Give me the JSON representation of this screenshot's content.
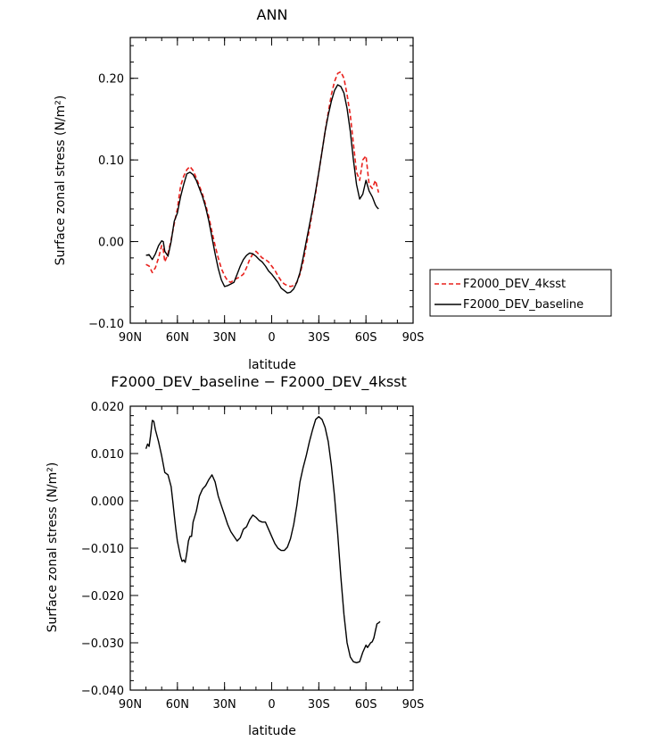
{
  "chart_data": [
    {
      "type": "line",
      "title": "ANN",
      "xlabel": "latitude",
      "ylabel": "Surface zonal stress (N/m²)",
      "xlim": [
        90,
        -90
      ],
      "ylim": [
        -0.1,
        0.25
      ],
      "x_ticks": [
        90,
        60,
        30,
        0,
        -30,
        -60,
        -90
      ],
      "x_tick_labels": [
        "90N",
        "60N",
        "30N",
        "0",
        "30S",
        "60S",
        "90S"
      ],
      "y_ticks": [
        -0.1,
        0.0,
        0.1,
        0.2
      ],
      "y_tick_labels": [
        "−0.10",
        "0.00",
        "0.10",
        "0.20"
      ],
      "legend": {
        "placement": "right",
        "entries": [
          "F2000_DEV_4ksst",
          "F2000_DEV_baseline"
        ]
      },
      "series": [
        {
          "name": "F2000_DEV_4ksst",
          "color": "#e8201c",
          "style": "dashed",
          "x": [
            80,
            78,
            76,
            74,
            72,
            70,
            69,
            68,
            66,
            64,
            62,
            60,
            58,
            56,
            54,
            52,
            50,
            48,
            46,
            44,
            42,
            40,
            38,
            36,
            34,
            32,
            30,
            28,
            26,
            24,
            22,
            20,
            18,
            16,
            14,
            12,
            10,
            8,
            6,
            4,
            2,
            0,
            -2,
            -4,
            -6,
            -8,
            -10,
            -12,
            -14,
            -16,
            -18,
            -20,
            -22,
            -24,
            -26,
            -28,
            -30,
            -32,
            -34,
            -36,
            -38,
            -40,
            -42,
            -44,
            -46,
            -48,
            -50,
            -52,
            -54,
            -56,
            -58,
            -60,
            -62,
            -64,
            -65,
            -66,
            -67,
            -68
          ],
          "values": [
            -0.028,
            -0.03,
            -0.038,
            -0.032,
            -0.02,
            -0.005,
            -0.01,
            -0.025,
            -0.015,
            0.002,
            0.022,
            0.04,
            0.068,
            0.08,
            0.088,
            0.092,
            0.087,
            0.078,
            0.068,
            0.058,
            0.045,
            0.03,
            0.012,
            -0.005,
            -0.02,
            -0.033,
            -0.042,
            -0.048,
            -0.05,
            -0.047,
            -0.045,
            -0.043,
            -0.04,
            -0.032,
            -0.022,
            -0.015,
            -0.012,
            -0.016,
            -0.02,
            -0.022,
            -0.025,
            -0.03,
            -0.035,
            -0.042,
            -0.048,
            -0.052,
            -0.054,
            -0.055,
            -0.054,
            -0.05,
            -0.04,
            -0.025,
            -0.005,
            0.015,
            0.038,
            0.06,
            0.085,
            0.11,
            0.135,
            0.158,
            0.18,
            0.196,
            0.206,
            0.208,
            0.2,
            0.18,
            0.155,
            0.12,
            0.085,
            0.075,
            0.1,
            0.105,
            0.07,
            0.065,
            0.07,
            0.075,
            0.068,
            0.06
          ]
        },
        {
          "name": "F2000_DEV_baseline",
          "color": "#000000",
          "style": "solid",
          "x": [
            80,
            78,
            76,
            74,
            72,
            70,
            69,
            68,
            66,
            64,
            62,
            60,
            58,
            56,
            54,
            52,
            50,
            48,
            46,
            44,
            42,
            40,
            38,
            36,
            34,
            32,
            30,
            28,
            26,
            24,
            22,
            20,
            18,
            16,
            14,
            12,
            10,
            8,
            6,
            4,
            2,
            0,
            -2,
            -4,
            -6,
            -8,
            -10,
            -12,
            -14,
            -16,
            -18,
            -20,
            -22,
            -24,
            -26,
            -28,
            -30,
            -32,
            -34,
            -36,
            -38,
            -40,
            -42,
            -44,
            -46,
            -48,
            -50,
            -52,
            -54,
            -56,
            -58,
            -60,
            -62,
            -64,
            -65,
            -66,
            -67,
            -68
          ],
          "values": [
            -0.017,
            -0.016,
            -0.022,
            -0.015,
            -0.005,
            0.001,
            0.0,
            -0.012,
            -0.018,
            0.0,
            0.025,
            0.035,
            0.055,
            0.07,
            0.083,
            0.085,
            0.082,
            0.075,
            0.065,
            0.055,
            0.042,
            0.025,
            0.005,
            -0.015,
            -0.033,
            -0.047,
            -0.055,
            -0.054,
            -0.052,
            -0.05,
            -0.04,
            -0.03,
            -0.022,
            -0.017,
            -0.014,
            -0.015,
            -0.018,
            -0.022,
            -0.025,
            -0.03,
            -0.036,
            -0.04,
            -0.045,
            -0.05,
            -0.057,
            -0.06,
            -0.063,
            -0.062,
            -0.058,
            -0.05,
            -0.038,
            -0.02,
            0.0,
            0.02,
            0.04,
            0.062,
            0.085,
            0.11,
            0.135,
            0.155,
            0.172,
            0.185,
            0.192,
            0.19,
            0.182,
            0.163,
            0.135,
            0.1,
            0.07,
            0.052,
            0.058,
            0.075,
            0.062,
            0.055,
            0.05,
            0.045,
            0.042,
            0.04
          ]
        }
      ]
    },
    {
      "type": "line",
      "title": "F2000_DEV_baseline − F2000_DEV_4ksst",
      "xlabel": "latitude",
      "ylabel": "Surface zonal stress (N/m²)",
      "xlim": [
        90,
        -90
      ],
      "ylim": [
        -0.04,
        0.02
      ],
      "x_ticks": [
        90,
        60,
        30,
        0,
        -30,
        -60,
        -90
      ],
      "x_tick_labels": [
        "90N",
        "60N",
        "30N",
        "0",
        "30S",
        "60S",
        "90S"
      ],
      "y_ticks": [
        -0.04,
        -0.03,
        -0.02,
        -0.01,
        0.0,
        0.01,
        0.02
      ],
      "y_tick_labels": [
        "−0.040",
        "−0.030",
        "−0.020",
        "−0.010",
        "0.000",
        "0.010",
        "0.020"
      ],
      "series": [
        {
          "color": "#000000",
          "style": "solid",
          "x": [
            80,
            79,
            78,
            77,
            76,
            75,
            74,
            72,
            70,
            68,
            66,
            64,
            63,
            62,
            61,
            60,
            58,
            57,
            56,
            55,
            54,
            53,
            52,
            51,
            50,
            48,
            46,
            44,
            42,
            40,
            38,
            36,
            34,
            32,
            30,
            28,
            26,
            24,
            22,
            20,
            18,
            16,
            14,
            12,
            10,
            8,
            6,
            4,
            2,
            0,
            -2,
            -4,
            -6,
            -8,
            -10,
            -12,
            -14,
            -16,
            -18,
            -20,
            -22,
            -24,
            -26,
            -28,
            -30,
            -32,
            -34,
            -36,
            -38,
            -40,
            -42,
            -44,
            -46,
            -48,
            -50,
            -52,
            -54,
            -56,
            -58,
            -60,
            -61,
            -62,
            -63,
            -64,
            -65,
            -66,
            -67,
            -68,
            -69
          ],
          "values": [
            0.011,
            0.012,
            0.0115,
            0.014,
            0.017,
            0.0168,
            0.015,
            0.0125,
            0.0095,
            0.006,
            0.0055,
            0.003,
            0.0,
            -0.003,
            -0.006,
            -0.0085,
            -0.0118,
            -0.0128,
            -0.0125,
            -0.013,
            -0.011,
            -0.0085,
            -0.0075,
            -0.0075,
            -0.0045,
            -0.0022,
            0.001,
            0.0025,
            0.0032,
            0.0045,
            0.0055,
            0.004,
            0.001,
            -0.001,
            -0.003,
            -0.005,
            -0.0065,
            -0.0075,
            -0.0085,
            -0.0078,
            -0.006,
            -0.0055,
            -0.004,
            -0.003,
            -0.0035,
            -0.0042,
            -0.0045,
            -0.0045,
            -0.006,
            -0.0075,
            -0.009,
            -0.01,
            -0.0105,
            -0.0105,
            -0.0098,
            -0.008,
            -0.005,
            -0.001,
            0.004,
            0.007,
            0.0095,
            0.0125,
            0.015,
            0.0172,
            0.0178,
            0.0172,
            0.0155,
            0.0125,
            0.0075,
            0.001,
            -0.007,
            -0.016,
            -0.024,
            -0.03,
            -0.033,
            -0.034,
            -0.0342,
            -0.034,
            -0.032,
            -0.0305,
            -0.031,
            -0.0305,
            -0.03,
            -0.0298,
            -0.029,
            -0.0275,
            -0.026,
            -0.0258,
            -0.0255
          ]
        }
      ]
    }
  ]
}
